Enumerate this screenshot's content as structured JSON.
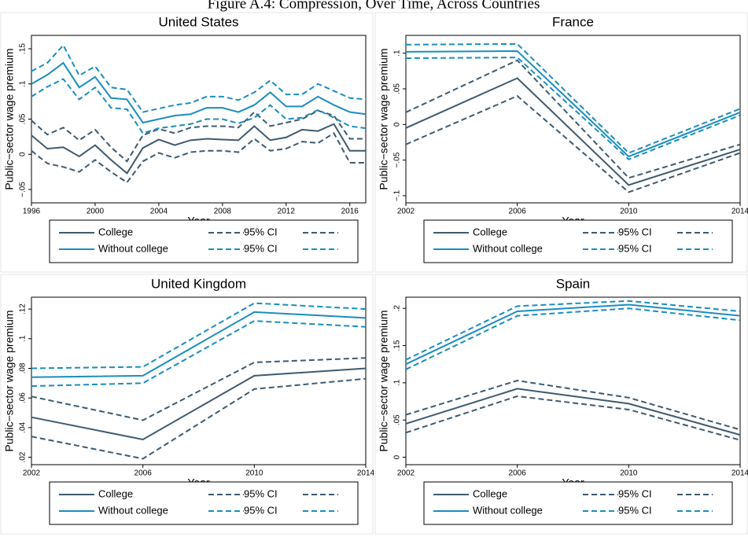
{
  "figure_title": "Figure A.4: Compression, Over Time, Across Countries",
  "chart_data": [
    {
      "type": "line",
      "title": "United States",
      "x_label": "Year",
      "y_label": "Public−sector wage premium",
      "x": [
        1996,
        1997,
        1998,
        1999,
        2000,
        2001,
        2002,
        2003,
        2004,
        2005,
        2006,
        2007,
        2008,
        2009,
        2010,
        2011,
        2012,
        2013,
        2014,
        2015,
        2016,
        2017
      ],
      "xlim": [
        1996,
        2017
      ],
      "xticks": [
        1996,
        2000,
        2004,
        2008,
        2012,
        2016
      ],
      "ylim": [
        -0.069,
        0.169
      ],
      "yticks": [
        {
          "value": -0.05,
          "label": "−.05"
        },
        0,
        {
          "value": 0.05,
          "label": ".05"
        },
        {
          "value": 0.1,
          "label": ".1"
        },
        {
          "value": 0.15,
          "label": ".15"
        }
      ],
      "series": [
        {
          "name": "College",
          "color": "#3e5a70",
          "dashed": false,
          "values": [
            0.027,
            0.008,
            0.01,
            -0.003,
            0.013,
            -0.008,
            -0.027,
            0.009,
            0.021,
            0.013,
            0.02,
            0.022,
            0.021,
            0.02,
            0.04,
            0.02,
            0.024,
            0.035,
            0.033,
            0.043,
            0.005,
            0.005
          ]
        },
        {
          "name": "95% CI",
          "color": "#3e5a70",
          "dashed": true,
          "values": [
            0.048,
            0.028,
            0.038,
            0.02,
            0.035,
            0.01,
            -0.01,
            0.027,
            0.036,
            0.03,
            0.038,
            0.04,
            0.04,
            0.038,
            0.06,
            0.04,
            0.045,
            0.05,
            0.062,
            0.055,
            0.022,
            0.022
          ]
        },
        {
          "name": null,
          "color": "#3e5a70",
          "dashed": true,
          "values": [
            0.005,
            -0.013,
            -0.018,
            -0.025,
            -0.008,
            -0.025,
            -0.04,
            -0.01,
            0.002,
            -0.005,
            0.003,
            0.005,
            0.005,
            0.003,
            0.022,
            0.005,
            0.008,
            0.018,
            0.016,
            0.03,
            -0.012,
            -0.012
          ]
        },
        {
          "name": "Without college",
          "color": "#1a8dbf",
          "dashed": false,
          "values": [
            0.1,
            0.113,
            0.13,
            0.095,
            0.11,
            0.08,
            0.078,
            0.045,
            0.05,
            0.055,
            0.057,
            0.066,
            0.066,
            0.06,
            0.07,
            0.088,
            0.068,
            0.068,
            0.082,
            0.07,
            0.06,
            0.057
          ]
        },
        {
          "name": "95% CI",
          "color": "#1a8dbf",
          "dashed": true,
          "values": [
            0.118,
            0.13,
            0.155,
            0.112,
            0.125,
            0.095,
            0.092,
            0.06,
            0.065,
            0.07,
            0.073,
            0.082,
            0.082,
            0.077,
            0.088,
            0.105,
            0.085,
            0.085,
            0.1,
            0.09,
            0.08,
            0.078
          ]
        },
        {
          "name": null,
          "color": "#1a8dbf",
          "dashed": true,
          "values": [
            0.082,
            0.096,
            0.107,
            0.078,
            0.095,
            0.066,
            0.064,
            0.03,
            0.037,
            0.04,
            0.043,
            0.05,
            0.05,
            0.044,
            0.052,
            0.07,
            0.05,
            0.052,
            0.063,
            0.052,
            0.04,
            0.037
          ]
        }
      ]
    },
    {
      "type": "line",
      "title": "France",
      "x_label": "Year",
      "y_label": "Public−sector wage premium",
      "x": [
        2002,
        2006,
        2010,
        2014
      ],
      "xlim": [
        2002,
        2014
      ],
      "xticks": [
        2002,
        2006,
        2010,
        2014
      ],
      "ylim": [
        -0.11,
        0.125
      ],
      "yticks": [
        {
          "value": -0.1,
          "label": "−.1"
        },
        {
          "value": -0.05,
          "label": "−.05"
        },
        0,
        {
          "value": 0.05,
          "label": ".05"
        },
        {
          "value": 0.1,
          "label": ".1"
        }
      ],
      "series": [
        {
          "name": "College",
          "color": "#3e5a70",
          "dashed": false,
          "values": [
            -0.005,
            0.065,
            -0.085,
            -0.035
          ]
        },
        {
          "name": "95% CI",
          "color": "#3e5a70",
          "dashed": true,
          "values": [
            0.017,
            0.09,
            -0.075,
            -0.028
          ]
        },
        {
          "name": null,
          "color": "#3e5a70",
          "dashed": true,
          "values": [
            -0.028,
            0.04,
            -0.095,
            -0.04
          ]
        },
        {
          "name": "Without college",
          "color": "#1a8dbf",
          "dashed": false,
          "values": [
            0.102,
            0.103,
            -0.045,
            0.017
          ]
        },
        {
          "name": "95% CI",
          "color": "#1a8dbf",
          "dashed": true,
          "values": [
            0.112,
            0.113,
            -0.04,
            0.022
          ]
        },
        {
          "name": null,
          "color": "#1a8dbf",
          "dashed": true,
          "values": [
            0.093,
            0.094,
            -0.049,
            0.013
          ]
        }
      ]
    },
    {
      "type": "line",
      "title": "United Kingdom",
      "x_label": "Year",
      "y_label": "Public−sector wage premium",
      "x": [
        2002,
        2006,
        2010,
        2014
      ],
      "xlim": [
        2002,
        2014
      ],
      "xticks": [
        2002,
        2006,
        2010,
        2014
      ],
      "ylim": [
        0.015,
        0.128
      ],
      "yticks": [
        {
          "value": 0.02,
          "label": ".02"
        },
        {
          "value": 0.04,
          "label": ".04"
        },
        {
          "value": 0.06,
          "label": ".06"
        },
        {
          "value": 0.08,
          "label": ".08"
        },
        {
          "value": 0.1,
          "label": ".1"
        },
        {
          "value": 0.12,
          "label": ".12"
        }
      ],
      "series": [
        {
          "name": "College",
          "color": "#3e5a70",
          "dashed": false,
          "values": [
            0.047,
            0.032,
            0.075,
            0.08
          ]
        },
        {
          "name": "95% CI",
          "color": "#3e5a70",
          "dashed": true,
          "values": [
            0.061,
            0.045,
            0.084,
            0.087
          ]
        },
        {
          "name": null,
          "color": "#3e5a70",
          "dashed": true,
          "values": [
            0.034,
            0.019,
            0.066,
            0.073
          ]
        },
        {
          "name": "Without college",
          "color": "#1a8dbf",
          "dashed": false,
          "values": [
            0.074,
            0.075,
            0.118,
            0.114
          ]
        },
        {
          "name": "95% CI",
          "color": "#1a8dbf",
          "dashed": true,
          "values": [
            0.08,
            0.081,
            0.124,
            0.12
          ]
        },
        {
          "name": null,
          "color": "#1a8dbf",
          "dashed": true,
          "values": [
            0.068,
            0.07,
            0.112,
            0.108
          ]
        }
      ]
    },
    {
      "type": "line",
      "title": "Spain",
      "x_label": "Year",
      "y_label": "Public−sector wage premium",
      "x": [
        2002,
        2006,
        2010,
        2014
      ],
      "xlim": [
        2002,
        2014
      ],
      "xticks": [
        2002,
        2006,
        2010,
        2014
      ],
      "ylim": [
        -0.01,
        0.215
      ],
      "yticks": [
        0,
        {
          "value": 0.05,
          "label": ".05"
        },
        {
          "value": 0.1,
          "label": ".1"
        },
        {
          "value": 0.15,
          "label": ".15"
        },
        {
          "value": 0.2,
          "label": ".2"
        }
      ],
      "series": [
        {
          "name": "College",
          "color": "#3e5a70",
          "dashed": false,
          "values": [
            0.045,
            0.092,
            0.072,
            0.03
          ]
        },
        {
          "name": "95% CI",
          "color": "#3e5a70",
          "dashed": true,
          "values": [
            0.057,
            0.103,
            0.08,
            0.037
          ]
        },
        {
          "name": null,
          "color": "#3e5a70",
          "dashed": true,
          "values": [
            0.033,
            0.082,
            0.064,
            0.023
          ]
        },
        {
          "name": "Without college",
          "color": "#1a8dbf",
          "dashed": false,
          "values": [
            0.125,
            0.196,
            0.205,
            0.19
          ]
        },
        {
          "name": "95% CI",
          "color": "#1a8dbf",
          "dashed": true,
          "values": [
            0.131,
            0.203,
            0.21,
            0.196
          ]
        },
        {
          "name": null,
          "color": "#1a8dbf",
          "dashed": true,
          "values": [
            0.118,
            0.19,
            0.2,
            0.184
          ]
        }
      ]
    }
  ]
}
